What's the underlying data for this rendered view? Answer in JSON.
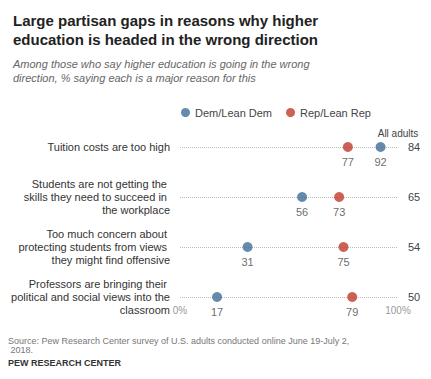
{
  "chart_data": {
    "type": "dot",
    "orientation": "horizontal",
    "title": "Large partisan gaps in reasons why higher education is headed in the wrong direction",
    "subtitle": "Among those who say higher education is going in the wrong direction, % saying each is a major reason for this",
    "categories": [
      "Tuition costs are too high",
      "Students are not getting the skills they need to succeed in the workplace",
      "Too much concern about protecting students from views they might find offensive",
      "Professors are bringing their political and social views into the classroom"
    ],
    "series": [
      {
        "name": "Dem/Lean Dem",
        "color": "#3d6e97",
        "values": [
          92,
          56,
          31,
          17
        ]
      },
      {
        "name": "Rep/Lean Rep",
        "color": "#bf3b2c",
        "values": [
          77,
          73,
          75,
          79
        ]
      }
    ],
    "totals": {
      "label": "All adults",
      "values": [
        84,
        65,
        54,
        50
      ]
    },
    "xlim": [
      0,
      100
    ],
    "xticks": [
      {
        "value": 0,
        "label": "0%"
      },
      {
        "value": 100,
        "label": "100%"
      }
    ],
    "grid": true,
    "legend": "top",
    "data_labels": true,
    "marker": "circle",
    "source": "Source: Pew Research Center survey of U.S. adults conducted online June 19-July 2, 2018.",
    "credit": "PEW RESEARCH CENTER"
  }
}
